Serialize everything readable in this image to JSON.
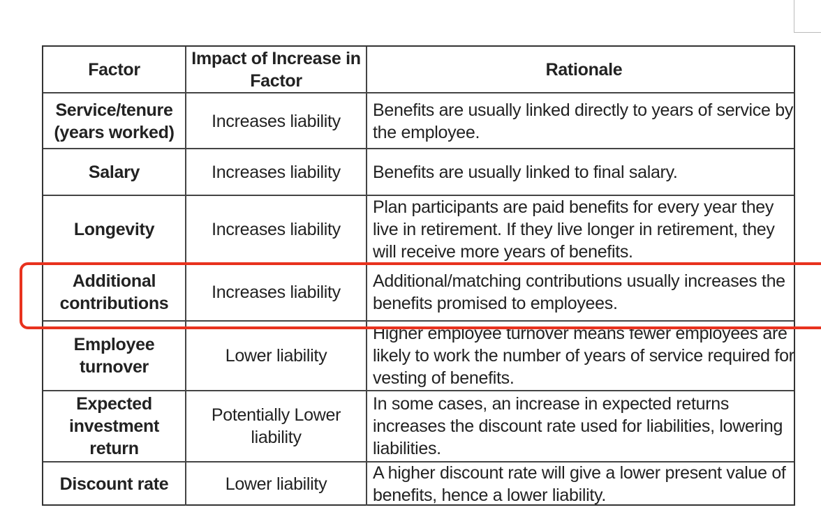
{
  "table": {
    "headers": [
      "Factor",
      "Impact of Increase in Factor",
      "Rationale"
    ],
    "rows": [
      {
        "factor": "Service/tenure (years worked)",
        "impact": "Increases liability",
        "rationale": "Benefits are usually linked directly to years of service by the employee."
      },
      {
        "factor": "Salary",
        "impact": "Increases liability",
        "rationale": "Benefits are usually linked to final salary."
      },
      {
        "factor": "Longevity",
        "impact": "Increases liability",
        "rationale": "Plan participants are paid benefits for every year they live in retirement. If they live longer in retirement, they will receive more years of benefits."
      },
      {
        "factor": "Additional contributions",
        "impact": "Increases liability",
        "rationale": "Additional/matching contributions usually increases the benefits promised to employees."
      },
      {
        "factor": "Employee turnover",
        "impact": "Lower liability",
        "rationale": "Higher employee turnover means fewer employees are likely to work the number of years of service required for vesting of benefits."
      },
      {
        "factor": "Expected investment return",
        "impact": "Potentially Lower liability",
        "rationale": "In some cases, an increase in expected returns increases the discount rate used for liabilities, lowering liabilities."
      },
      {
        "factor": "Discount rate",
        "impact": "Lower liability",
        "rationale": "A higher discount rate will give a lower present value of benefits, hence a lower liability."
      }
    ]
  },
  "highlight_color": "#e8321e"
}
